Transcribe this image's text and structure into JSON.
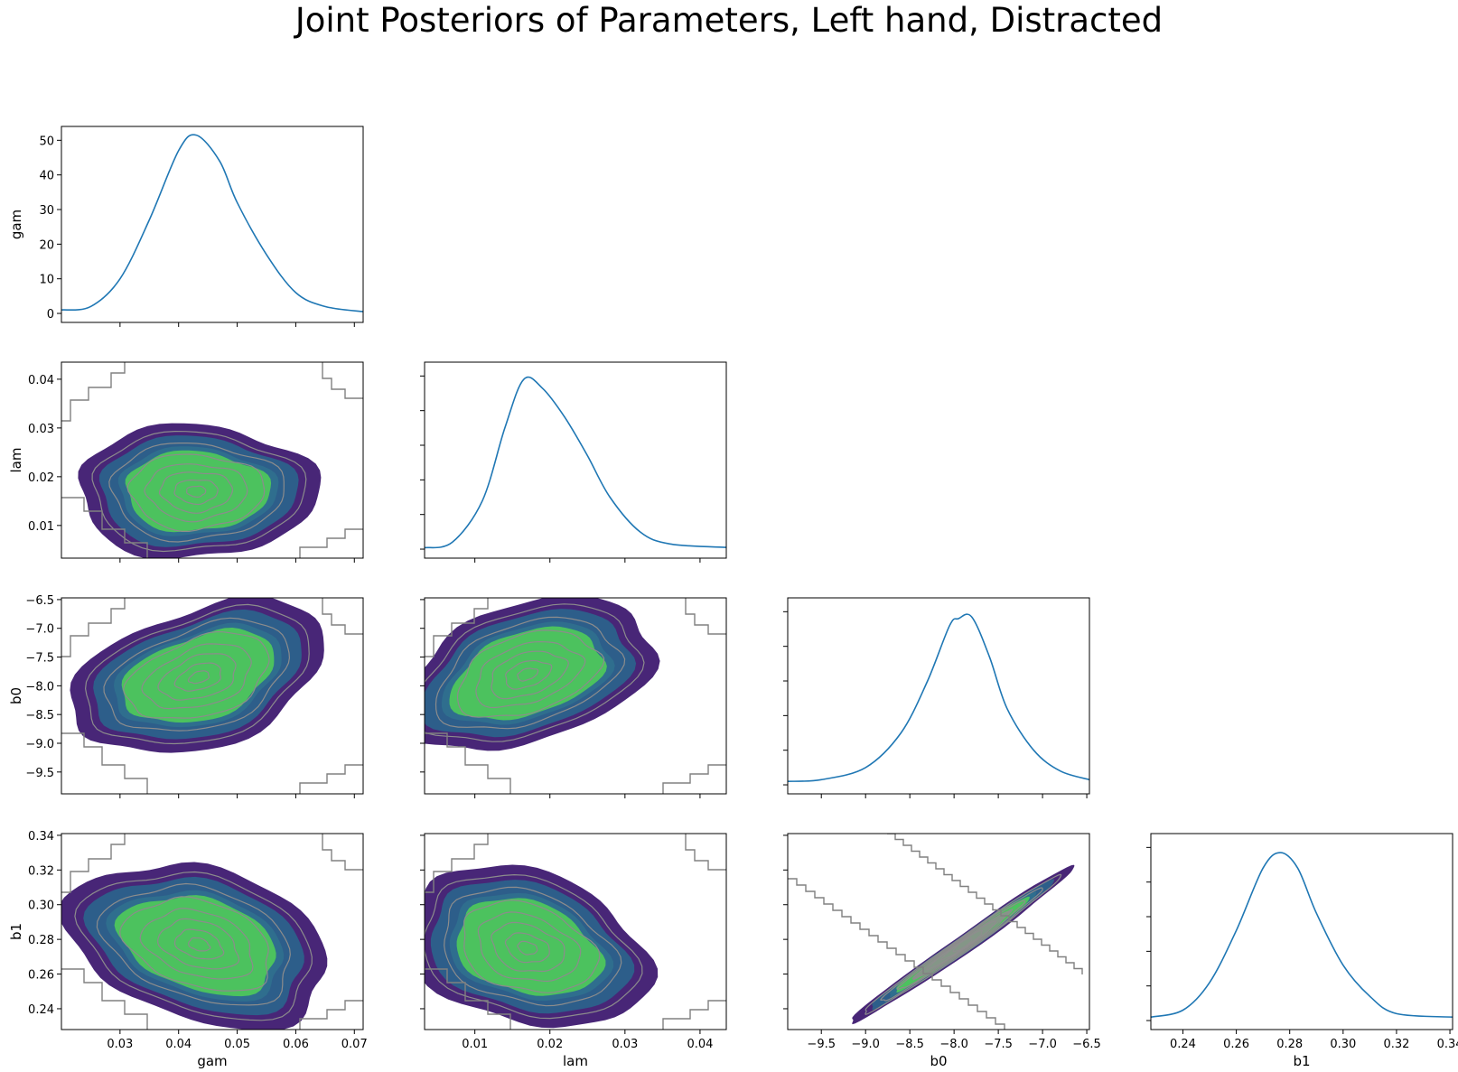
{
  "figure": {
    "title": "Joint Posteriors of Parameters, Left hand, Distracted"
  },
  "chart_data": {
    "type": "pair-grid",
    "title": "Joint Posteriors of Parameters, Left hand, Distracted",
    "params": [
      "gam",
      "lam",
      "b0",
      "b1"
    ],
    "colors": {
      "kde_line": "#1f77b4",
      "fill_levels": [
        "#482677",
        "#2d5e8a",
        "#2f6e8e",
        "#4cc25e",
        "#52c569"
      ],
      "contour_line": "#8c8c8c",
      "step_line": "#808080",
      "frame": "#000000"
    },
    "axes": {
      "gam": {
        "lim": [
          0.02,
          0.0715
        ],
        "ticks": [
          0.03,
          0.04,
          0.05,
          0.06,
          0.07
        ],
        "tick_labels": [
          "0.03",
          "0.04",
          "0.05",
          "0.06",
          "0.07"
        ]
      },
      "lam": {
        "lim": [
          0.0033,
          0.0435
        ],
        "ticks": [
          0.01,
          0.02,
          0.03,
          0.04
        ],
        "tick_labels": [
          "0.01",
          "0.02",
          "0.03",
          "0.04"
        ]
      },
      "b0": {
        "lim": [
          -9.88,
          -6.47
        ],
        "ticks": [
          -9.5,
          -9.0,
          -8.5,
          -8.0,
          -7.5,
          -7.0,
          -6.5
        ],
        "tick_labels": [
          "−9.5",
          "−9.0",
          "−8.5",
          "−8.0",
          "−7.5",
          "−7.0",
          "−6.5"
        ]
      },
      "b1": {
        "lim": [
          0.228,
          0.341
        ],
        "ticks": [
          0.24,
          0.26,
          0.28,
          0.3,
          0.32,
          0.34
        ],
        "tick_labels": [
          "0.24",
          "0.26",
          "0.28",
          "0.30",
          "0.32",
          "0.34"
        ],
        "bottom_tick_labels": [
          "0.24",
          "0.26",
          "0.28",
          "0.30",
          "0.32",
          "0.34"
        ]
      }
    },
    "density_axis": {
      "lim": [
        -2.6,
        54
      ],
      "ticks": [
        0,
        10,
        20,
        30,
        40,
        50
      ],
      "tick_labels": [
        "0",
        "10",
        "20",
        "30",
        "40",
        "50"
      ]
    },
    "diagonal": {
      "gam": {
        "x": [
          0.02,
          0.025,
          0.03,
          0.035,
          0.04,
          0.043,
          0.047,
          0.05,
          0.055,
          0.06,
          0.065,
          0.0715
        ],
        "y": [
          1,
          2,
          10,
          27,
          47,
          51.5,
          44,
          32,
          17,
          6,
          2,
          0.5
        ]
      },
      "lam": {
        "x": [
          0.0033,
          0.007,
          0.011,
          0.014,
          0.0165,
          0.019,
          0.022,
          0.025,
          0.028,
          0.032,
          0.036,
          0.0435
        ],
        "y": [
          0.4,
          2,
          14,
          35,
          49,
          46.5,
          38,
          27,
          15,
          5,
          1.5,
          0.5
        ]
      },
      "b0": {
        "x": [
          -9.88,
          -9.5,
          -9.0,
          -8.6,
          -8.3,
          -8.05,
          -7.95,
          -7.8,
          -7.6,
          -7.4,
          -7.1,
          -6.8,
          -6.47
        ],
        "y": [
          1,
          1.5,
          5,
          15,
          30,
          46,
          48,
          48.5,
          37,
          22,
          10,
          4,
          1.5
        ]
      },
      "b1": {
        "x": [
          0.228,
          0.24,
          0.25,
          0.26,
          0.27,
          0.2765,
          0.283,
          0.29,
          0.3,
          0.31,
          0.32,
          0.341
        ],
        "y": [
          1,
          3,
          11,
          26,
          44,
          48.5,
          44,
          31,
          16,
          7,
          2,
          1
        ]
      }
    },
    "pairs": [
      {
        "x": "gam",
        "y": "lam",
        "center": [
          0.043,
          0.017
        ],
        "radii": [
          0.0205,
          0.0137
        ],
        "angle": 0
      },
      {
        "x": "gam",
        "y": "b0",
        "center": [
          0.0435,
          -7.85
        ],
        "radii": [
          0.0225,
          1.2
        ],
        "angle": -18
      },
      {
        "x": "lam",
        "y": "b0",
        "center": [
          0.017,
          -7.8
        ],
        "radii": [
          0.0175,
          1.2
        ],
        "angle": -18
      },
      {
        "x": "gam",
        "y": "b1",
        "center": [
          0.0435,
          0.277
        ],
        "radii": [
          0.023,
          0.044
        ],
        "angle": 16
      },
      {
        "x": "lam",
        "y": "b1",
        "center": [
          0.017,
          0.275
        ],
        "radii": [
          0.0165,
          0.044
        ],
        "angle": 16
      },
      {
        "x": "b0",
        "y": "b1",
        "center": [
          -7.9,
          0.277
        ],
        "radii": [
          1.55,
          0.0055
        ],
        "angle": -35
      }
    ]
  }
}
